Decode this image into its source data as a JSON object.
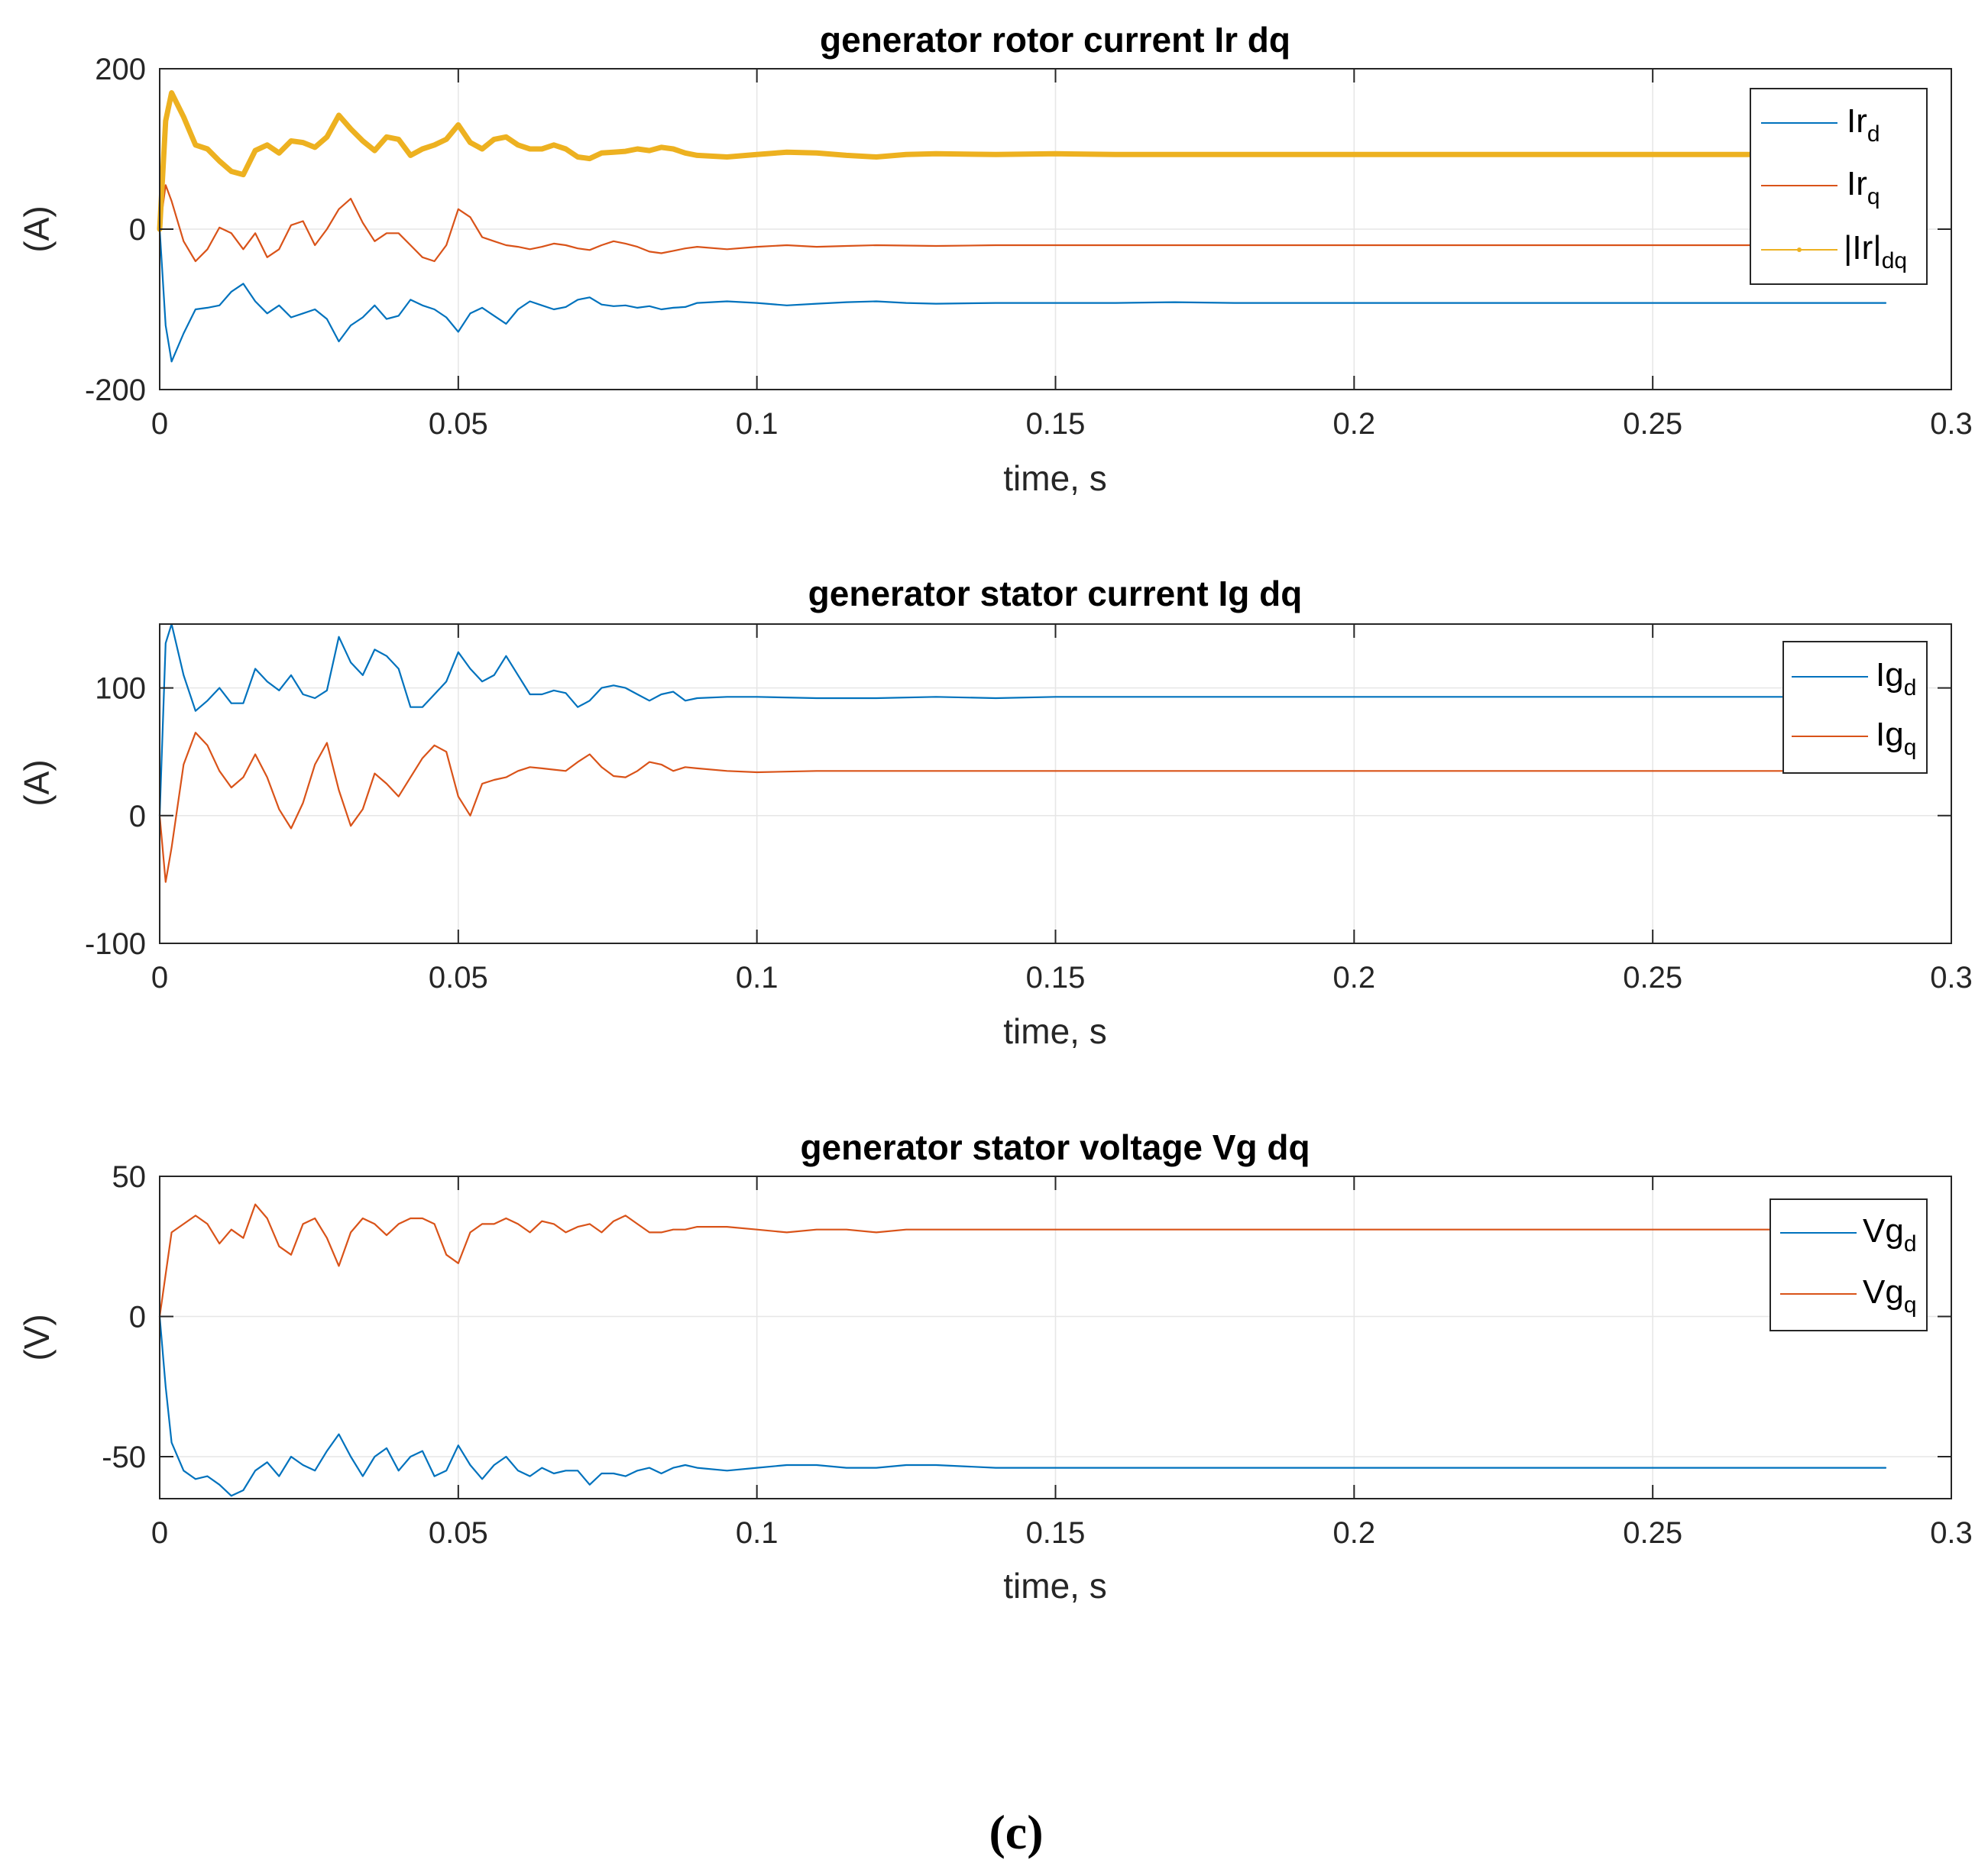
{
  "caption": "(c)",
  "colors": {
    "d": "#0072BD",
    "q": "#D95319",
    "mag": "#EDB120",
    "grid": "#e6e6e6",
    "axis": "#262626"
  },
  "chart_data": [
    {
      "type": "line",
      "title": "generator rotor current Ir dq",
      "xlabel": "time, s",
      "ylabel": "(A)",
      "xlim": [
        0,
        0.3
      ],
      "ylim": [
        -200,
        200
      ],
      "xticks": [
        0,
        0.05,
        0.1,
        0.15,
        0.2,
        0.25,
        0.3
      ],
      "xtick_labels": [
        "0",
        "0.05",
        "0.1",
        "0.15",
        "0.2",
        "0.25",
        "0.3"
      ],
      "yticks": [
        -200,
        0,
        200
      ],
      "ytick_labels": [
        "-200",
        "0",
        "200"
      ],
      "legend_position": "top-right",
      "series": [
        {
          "name": "Ir",
          "sub": "d",
          "color_key": "d",
          "x": [
            0,
            0.001,
            0.002,
            0.004,
            0.006,
            0.008,
            0.01,
            0.012,
            0.014,
            0.016,
            0.018,
            0.02,
            0.022,
            0.024,
            0.026,
            0.028,
            0.03,
            0.032,
            0.034,
            0.036,
            0.038,
            0.04,
            0.042,
            0.044,
            0.046,
            0.048,
            0.05,
            0.052,
            0.054,
            0.056,
            0.058,
            0.06,
            0.062,
            0.064,
            0.066,
            0.068,
            0.07,
            0.072,
            0.074,
            0.076,
            0.078,
            0.08,
            0.082,
            0.084,
            0.086,
            0.088,
            0.09,
            0.095,
            0.1,
            0.105,
            0.11,
            0.115,
            0.12,
            0.125,
            0.13,
            0.14,
            0.15,
            0.16,
            0.17,
            0.18,
            0.19,
            0.2,
            0.22,
            0.24,
            0.26,
            0.28,
            0.289
          ],
          "y": [
            0,
            -120,
            -165,
            -130,
            -100,
            -98,
            -95,
            -78,
            -68,
            -90,
            -105,
            -95,
            -110,
            -105,
            -100,
            -112,
            -140,
            -120,
            -110,
            -95,
            -112,
            -108,
            -88,
            -95,
            -100,
            -110,
            -128,
            -105,
            -98,
            -108,
            -118,
            -100,
            -90,
            -95,
            -100,
            -97,
            -88,
            -85,
            -94,
            -96,
            -95,
            -98,
            -96,
            -100,
            -98,
            -97,
            -92,
            -90,
            -92,
            -95,
            -93,
            -91,
            -90,
            -92,
            -93,
            -92,
            -92,
            -92,
            -91,
            -92,
            -92,
            -92,
            -92,
            -92,
            -92,
            -92,
            -92
          ]
        },
        {
          "name": "Ir",
          "sub": "q",
          "color_key": "q",
          "x": [
            0,
            0.001,
            0.002,
            0.004,
            0.006,
            0.008,
            0.01,
            0.012,
            0.014,
            0.016,
            0.018,
            0.02,
            0.022,
            0.024,
            0.026,
            0.028,
            0.03,
            0.032,
            0.034,
            0.036,
            0.038,
            0.04,
            0.042,
            0.044,
            0.046,
            0.048,
            0.05,
            0.052,
            0.054,
            0.056,
            0.058,
            0.06,
            0.062,
            0.064,
            0.066,
            0.068,
            0.07,
            0.072,
            0.074,
            0.076,
            0.078,
            0.08,
            0.082,
            0.084,
            0.086,
            0.088,
            0.09,
            0.095,
            0.1,
            0.105,
            0.11,
            0.115,
            0.12,
            0.13,
            0.14,
            0.15,
            0.17,
            0.19,
            0.2,
            0.22,
            0.24,
            0.26,
            0.28,
            0.289
          ],
          "y": [
            0,
            55,
            35,
            -15,
            -40,
            -25,
            2,
            -5,
            -25,
            -5,
            -35,
            -25,
            5,
            10,
            -20,
            0,
            25,
            38,
            8,
            -15,
            -5,
            -5,
            -20,
            -35,
            -40,
            -20,
            25,
            15,
            -10,
            -15,
            -20,
            -22,
            -25,
            -22,
            -18,
            -20,
            -24,
            -26,
            -20,
            -15,
            -18,
            -22,
            -28,
            -30,
            -27,
            -24,
            -22,
            -25,
            -22,
            -20,
            -22,
            -21,
            -20,
            -21,
            -20,
            -20,
            -20,
            -20,
            -20,
            -20,
            -20,
            -20,
            -20,
            -20
          ]
        },
        {
          "name": "|Ir|",
          "sub": "dq",
          "color_key": "mag",
          "x": [
            0,
            0.001,
            0.002,
            0.004,
            0.006,
            0.008,
            0.01,
            0.012,
            0.014,
            0.016,
            0.018,
            0.02,
            0.022,
            0.024,
            0.026,
            0.028,
            0.03,
            0.032,
            0.034,
            0.036,
            0.038,
            0.04,
            0.042,
            0.044,
            0.046,
            0.048,
            0.05,
            0.052,
            0.054,
            0.056,
            0.058,
            0.06,
            0.062,
            0.064,
            0.066,
            0.068,
            0.07,
            0.072,
            0.074,
            0.076,
            0.078,
            0.08,
            0.082,
            0.084,
            0.086,
            0.088,
            0.09,
            0.095,
            0.1,
            0.105,
            0.11,
            0.115,
            0.12,
            0.125,
            0.13,
            0.14,
            0.15,
            0.16,
            0.17,
            0.18,
            0.19,
            0.2,
            0.22,
            0.24,
            0.26,
            0.28,
            0.289
          ],
          "y": [
            0,
            135,
            170,
            140,
            105,
            100,
            85,
            72,
            68,
            98,
            105,
            95,
            110,
            108,
            102,
            115,
            142,
            125,
            110,
            98,
            115,
            112,
            92,
            100,
            105,
            112,
            130,
            108,
            100,
            112,
            115,
            105,
            100,
            100,
            105,
            100,
            90,
            88,
            95,
            96,
            97,
            100,
            98,
            102,
            100,
            95,
            92,
            90,
            93,
            96,
            95,
            92,
            90,
            93,
            94,
            93,
            94,
            93,
            93,
            93,
            93,
            93,
            93,
            93,
            93,
            93,
            93
          ]
        }
      ]
    },
    {
      "type": "line",
      "title": "generator stator current Ig dq",
      "xlabel": "time, s",
      "ylabel": "(A)",
      "xlim": [
        0,
        0.3
      ],
      "ylim": [
        -100,
        150
      ],
      "xticks": [
        0,
        0.05,
        0.1,
        0.15,
        0.2,
        0.25,
        0.3
      ],
      "xtick_labels": [
        "0",
        "0.05",
        "0.1",
        "0.15",
        "0.2",
        "0.25",
        "0.3"
      ],
      "yticks": [
        -100,
        0,
        100
      ],
      "ytick_labels": [
        "-100",
        "0",
        "100"
      ],
      "legend_position": "top-right",
      "series": [
        {
          "name": "Ig",
          "sub": "d",
          "color_key": "d",
          "x": [
            0,
            0.001,
            0.002,
            0.004,
            0.006,
            0.008,
            0.01,
            0.012,
            0.014,
            0.016,
            0.018,
            0.02,
            0.022,
            0.024,
            0.026,
            0.028,
            0.03,
            0.032,
            0.034,
            0.036,
            0.038,
            0.04,
            0.042,
            0.044,
            0.046,
            0.048,
            0.05,
            0.052,
            0.054,
            0.056,
            0.058,
            0.06,
            0.062,
            0.064,
            0.066,
            0.068,
            0.07,
            0.072,
            0.074,
            0.076,
            0.078,
            0.08,
            0.082,
            0.084,
            0.086,
            0.088,
            0.09,
            0.095,
            0.1,
            0.11,
            0.12,
            0.13,
            0.14,
            0.15,
            0.17,
            0.19,
            0.2,
            0.22,
            0.24,
            0.26,
            0.28,
            0.289
          ],
          "y": [
            0,
            135,
            150,
            110,
            82,
            90,
            100,
            88,
            88,
            115,
            105,
            98,
            110,
            95,
            92,
            98,
            140,
            120,
            110,
            130,
            125,
            115,
            85,
            85,
            95,
            105,
            128,
            115,
            105,
            110,
            125,
            110,
            95,
            95,
            98,
            96,
            85,
            90,
            100,
            102,
            100,
            95,
            90,
            95,
            97,
            90,
            92,
            93,
            93,
            92,
            92,
            93,
            92,
            93,
            93,
            93,
            93,
            93,
            93,
            93,
            93,
            93
          ]
        },
        {
          "name": "Ig",
          "sub": "q",
          "color_key": "q",
          "x": [
            0,
            0.001,
            0.002,
            0.004,
            0.006,
            0.008,
            0.01,
            0.012,
            0.014,
            0.016,
            0.018,
            0.02,
            0.022,
            0.024,
            0.026,
            0.028,
            0.03,
            0.032,
            0.034,
            0.036,
            0.038,
            0.04,
            0.042,
            0.044,
            0.046,
            0.048,
            0.05,
            0.052,
            0.054,
            0.056,
            0.058,
            0.06,
            0.062,
            0.064,
            0.066,
            0.068,
            0.07,
            0.072,
            0.074,
            0.076,
            0.078,
            0.08,
            0.082,
            0.084,
            0.086,
            0.088,
            0.09,
            0.095,
            0.1,
            0.11,
            0.12,
            0.13,
            0.14,
            0.15,
            0.17,
            0.19,
            0.2,
            0.22,
            0.24,
            0.26,
            0.28,
            0.289
          ],
          "y": [
            0,
            -52,
            -25,
            40,
            65,
            55,
            35,
            22,
            30,
            48,
            30,
            5,
            -10,
            10,
            40,
            57,
            20,
            -8,
            5,
            33,
            25,
            15,
            30,
            45,
            55,
            50,
            15,
            0,
            25,
            28,
            30,
            35,
            38,
            37,
            36,
            35,
            42,
            48,
            38,
            31,
            30,
            35,
            42,
            40,
            35,
            38,
            37,
            35,
            34,
            35,
            35,
            35,
            35,
            35,
            35,
            35,
            35,
            35,
            35,
            35,
            35,
            35
          ]
        }
      ]
    },
    {
      "type": "line",
      "title": "generator stator voltage Vg dq",
      "xlabel": "time, s",
      "ylabel": "(V)",
      "xlim": [
        0,
        0.3
      ],
      "ylim": [
        -65,
        50
      ],
      "xticks": [
        0,
        0.05,
        0.1,
        0.15,
        0.2,
        0.25,
        0.3
      ],
      "xtick_labels": [
        "0",
        "0.05",
        "0.1",
        "0.15",
        "0.2",
        "0.25",
        "0.3"
      ],
      "yticks": [
        -50,
        0,
        50
      ],
      "ytick_labels": [
        "-50",
        "0",
        "50"
      ],
      "legend_position": "top-right",
      "series": [
        {
          "name": "Vg",
          "sub": "d",
          "color_key": "d",
          "x": [
            0,
            0.001,
            0.002,
            0.004,
            0.006,
            0.008,
            0.01,
            0.012,
            0.014,
            0.016,
            0.018,
            0.02,
            0.022,
            0.024,
            0.026,
            0.028,
            0.03,
            0.032,
            0.034,
            0.036,
            0.038,
            0.04,
            0.042,
            0.044,
            0.046,
            0.048,
            0.05,
            0.052,
            0.054,
            0.056,
            0.058,
            0.06,
            0.062,
            0.064,
            0.066,
            0.068,
            0.07,
            0.072,
            0.074,
            0.076,
            0.078,
            0.08,
            0.082,
            0.084,
            0.086,
            0.088,
            0.09,
            0.095,
            0.1,
            0.105,
            0.11,
            0.115,
            0.12,
            0.125,
            0.13,
            0.14,
            0.15,
            0.16,
            0.17,
            0.18,
            0.19,
            0.2,
            0.22,
            0.24,
            0.26,
            0.28,
            0.289
          ],
          "y": [
            0,
            -25,
            -45,
            -55,
            -58,
            -57,
            -60,
            -64,
            -62,
            -55,
            -52,
            -57,
            -50,
            -53,
            -55,
            -48,
            -42,
            -50,
            -57,
            -50,
            -47,
            -55,
            -50,
            -48,
            -57,
            -55,
            -46,
            -53,
            -58,
            -53,
            -50,
            -55,
            -57,
            -54,
            -56,
            -55,
            -55,
            -60,
            -56,
            -56,
            -57,
            -55,
            -54,
            -56,
            -54,
            -53,
            -54,
            -55,
            -54,
            -53,
            -53,
            -54,
            -54,
            -53,
            -53,
            -54,
            -54,
            -54,
            -54,
            -54,
            -54,
            -54,
            -54,
            -54,
            -54,
            -54,
            -54
          ]
        },
        {
          "name": "Vg",
          "sub": "q",
          "color_key": "q",
          "x": [
            0,
            0.001,
            0.002,
            0.004,
            0.006,
            0.008,
            0.01,
            0.012,
            0.014,
            0.016,
            0.018,
            0.02,
            0.022,
            0.024,
            0.026,
            0.028,
            0.03,
            0.032,
            0.034,
            0.036,
            0.038,
            0.04,
            0.042,
            0.044,
            0.046,
            0.048,
            0.05,
            0.052,
            0.054,
            0.056,
            0.058,
            0.06,
            0.062,
            0.064,
            0.066,
            0.068,
            0.07,
            0.072,
            0.074,
            0.076,
            0.078,
            0.08,
            0.082,
            0.084,
            0.086,
            0.088,
            0.09,
            0.095,
            0.1,
            0.105,
            0.11,
            0.115,
            0.12,
            0.125,
            0.13,
            0.14,
            0.15,
            0.16,
            0.17,
            0.18,
            0.19,
            0.2,
            0.22,
            0.24,
            0.26,
            0.28,
            0.289
          ],
          "y": [
            0,
            15,
            30,
            33,
            36,
            33,
            26,
            31,
            28,
            40,
            35,
            25,
            22,
            33,
            35,
            28,
            18,
            30,
            35,
            33,
            29,
            33,
            35,
            35,
            33,
            22,
            19,
            30,
            33,
            33,
            35,
            33,
            30,
            34,
            33,
            30,
            32,
            33,
            30,
            34,
            36,
            33,
            30,
            30,
            31,
            31,
            32,
            32,
            31,
            30,
            31,
            31,
            30,
            31,
            31,
            31,
            31,
            31,
            31,
            31,
            31,
            31,
            31,
            31,
            31,
            31,
            31
          ]
        }
      ]
    }
  ]
}
